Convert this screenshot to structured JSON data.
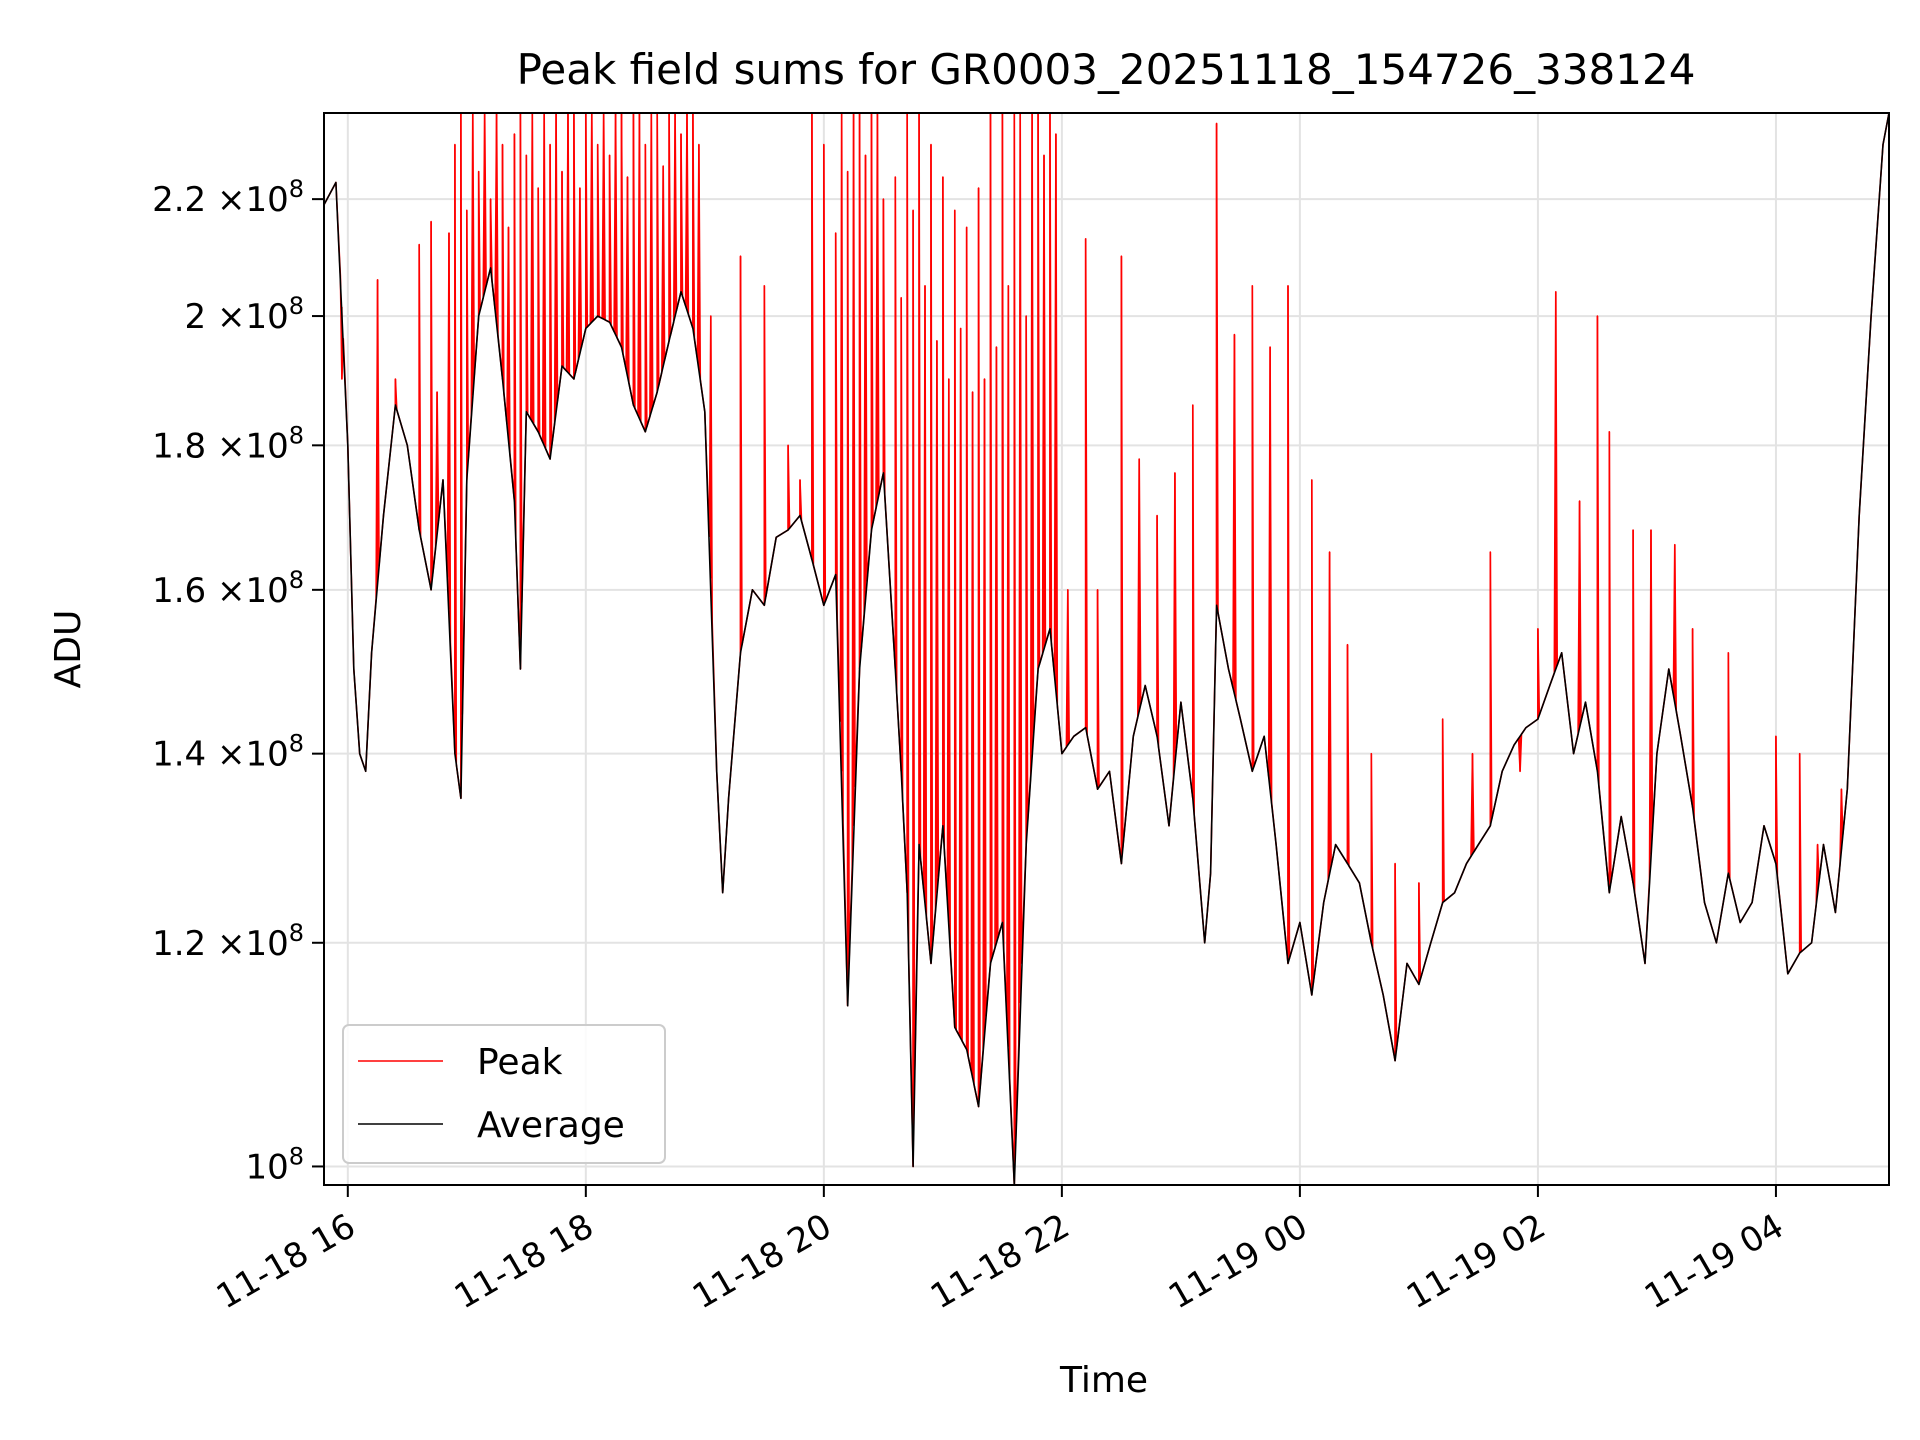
{
  "chart_data": {
    "type": "line",
    "title": "Peak field sums for GR0003_20251118_154726_338124",
    "xlabel": "Time",
    "ylabel": "ADU",
    "y_scale": "log",
    "ylim": [
      98500000,
      236000000
    ],
    "xlim_hours": [
      15.8,
      28.95
    ],
    "grid": true,
    "legend_position": "lower-left",
    "x_ticks": [
      {
        "hour": 16,
        "label": "11-18 16"
      },
      {
        "hour": 18,
        "label": "11-18 18"
      },
      {
        "hour": 20,
        "label": "11-18 20"
      },
      {
        "hour": 22,
        "label": "11-18 22"
      },
      {
        "hour": 24,
        "label": "11-19 00"
      },
      {
        "hour": 26,
        "label": "11-19 02"
      },
      {
        "hour": 28,
        "label": "11-19 04"
      }
    ],
    "y_ticks": [
      {
        "value": 100000000,
        "mantissa": "10",
        "label_mult": "",
        "exp": "8"
      },
      {
        "value": 120000000,
        "mantissa": "1.2",
        "label_mult": "×10",
        "exp": "8"
      },
      {
        "value": 140000000,
        "mantissa": "1.4",
        "label_mult": "×10",
        "exp": "8"
      },
      {
        "value": 160000000,
        "mantissa": "1.6",
        "label_mult": "×10",
        "exp": "8"
      },
      {
        "value": 180000000,
        "mantissa": "1.8",
        "label_mult": "×10",
        "exp": "8"
      },
      {
        "value": 200000000,
        "mantissa": "2",
        "label_mult": "×10",
        "exp": "8"
      },
      {
        "value": 220000000,
        "mantissa": "2.2",
        "label_mult": "×10",
        "exp": "8"
      }
    ],
    "series": [
      {
        "name": "Average",
        "color": "#000000",
        "x_hours": [
          15.8,
          15.9,
          16.0,
          16.05,
          16.1,
          16.15,
          16.2,
          16.3,
          16.4,
          16.5,
          16.6,
          16.7,
          16.8,
          16.9,
          16.95,
          17.0,
          17.1,
          17.2,
          17.3,
          17.4,
          17.45,
          17.5,
          17.6,
          17.7,
          17.8,
          17.9,
          18.0,
          18.1,
          18.2,
          18.3,
          18.4,
          18.5,
          18.6,
          18.7,
          18.8,
          18.9,
          19.0,
          19.1,
          19.15,
          19.2,
          19.3,
          19.4,
          19.5,
          19.6,
          19.7,
          19.8,
          19.9,
          20.0,
          20.1,
          20.2,
          20.3,
          20.4,
          20.5,
          20.6,
          20.65,
          20.7,
          20.75,
          20.8,
          20.9,
          21.0,
          21.1,
          21.2,
          21.3,
          21.4,
          21.5,
          21.6,
          21.7,
          21.8,
          21.9,
          22.0,
          22.1,
          22.2,
          22.3,
          22.4,
          22.5,
          22.6,
          22.7,
          22.8,
          22.9,
          23.0,
          23.1,
          23.2,
          23.25,
          23.3,
          23.4,
          23.5,
          23.6,
          23.7,
          23.8,
          23.9,
          24.0,
          24.1,
          24.2,
          24.3,
          24.4,
          24.5,
          24.6,
          24.7,
          24.8,
          24.9,
          25.0,
          25.1,
          25.2,
          25.3,
          25.4,
          25.5,
          25.6,
          25.7,
          25.8,
          25.9,
          26.0,
          26.1,
          26.2,
          26.3,
          26.4,
          26.5,
          26.6,
          26.7,
          26.8,
          26.9,
          27.0,
          27.1,
          27.2,
          27.3,
          27.4,
          27.5,
          27.6,
          27.7,
          27.8,
          27.9,
          28.0,
          28.1,
          28.2,
          28.3,
          28.4,
          28.5,
          28.6,
          28.7,
          28.8,
          28.9,
          28.95
        ],
        "values": [
          219000000,
          223000000,
          180000000,
          150000000,
          140000000,
          138000000,
          152000000,
          170000000,
          186000000,
          180000000,
          168000000,
          160000000,
          175000000,
          140000000,
          135000000,
          175000000,
          200000000,
          208000000,
          190000000,
          172000000,
          150000000,
          185000000,
          182000000,
          178000000,
          192000000,
          190000000,
          198000000,
          200000000,
          199000000,
          195000000,
          186000000,
          182000000,
          188000000,
          196000000,
          204000000,
          198000000,
          185000000,
          138000000,
          125000000,
          135000000,
          152000000,
          160000000,
          158000000,
          167000000,
          168000000,
          170000000,
          164000000,
          158000000,
          162000000,
          114000000,
          150000000,
          168000000,
          176000000,
          150000000,
          138000000,
          125000000,
          100000000,
          130000000,
          118000000,
          132000000,
          112000000,
          110000000,
          105000000,
          118000000,
          122000000,
          98500000,
          130000000,
          150000000,
          155000000,
          140000000,
          142000000,
          143000000,
          136000000,
          138000000,
          128000000,
          142000000,
          148000000,
          142000000,
          132000000,
          146000000,
          135000000,
          120000000,
          127000000,
          158000000,
          150000000,
          144000000,
          138000000,
          142000000,
          130000000,
          118000000,
          122000000,
          115000000,
          124000000,
          130000000,
          128000000,
          126000000,
          120000000,
          115000000,
          109000000,
          118000000,
          116000000,
          120000000,
          124000000,
          125000000,
          128000000,
          130000000,
          132000000,
          138000000,
          141000000,
          143000000,
          144000000,
          148000000,
          152000000,
          140000000,
          146000000,
          138000000,
          125000000,
          133000000,
          126000000,
          118000000,
          140000000,
          150000000,
          142000000,
          134000000,
          124000000,
          120000000,
          127000000,
          122000000,
          124000000,
          132000000,
          128000000,
          117000000,
          119000000,
          120000000,
          130000000,
          123000000,
          136000000,
          170000000,
          200000000,
          230000000,
          236000000
        ]
      },
      {
        "name": "Peak",
        "color": "#ff0000",
        "x_hours": [
          15.95,
          16.25,
          16.4,
          16.6,
          16.7,
          16.75,
          16.85,
          16.9,
          16.95,
          17.0,
          17.05,
          17.1,
          17.15,
          17.2,
          17.25,
          17.3,
          17.35,
          17.4,
          17.45,
          17.5,
          17.55,
          17.6,
          17.65,
          17.7,
          17.75,
          17.8,
          17.85,
          17.9,
          17.95,
          18.0,
          18.05,
          18.1,
          18.15,
          18.2,
          18.25,
          18.3,
          18.35,
          18.4,
          18.45,
          18.5,
          18.55,
          18.6,
          18.65,
          18.7,
          18.75,
          18.8,
          18.85,
          18.9,
          18.95,
          19.05,
          19.3,
          19.5,
          19.7,
          19.8,
          19.9,
          20.0,
          20.1,
          20.15,
          20.2,
          20.25,
          20.3,
          20.35,
          20.4,
          20.45,
          20.5,
          20.6,
          20.65,
          20.7,
          20.75,
          20.8,
          20.85,
          20.9,
          20.95,
          21.0,
          21.05,
          21.1,
          21.15,
          21.2,
          21.25,
          21.3,
          21.35,
          21.4,
          21.45,
          21.5,
          21.55,
          21.6,
          21.65,
          21.7,
          21.75,
          21.8,
          21.85,
          21.9,
          21.95,
          22.05,
          22.2,
          22.3,
          22.5,
          22.65,
          22.8,
          22.95,
          23.1,
          23.3,
          23.45,
          23.6,
          23.75,
          23.9,
          24.1,
          24.25,
          24.4,
          24.6,
          24.8,
          25.0,
          25.2,
          25.45,
          25.6,
          25.85,
          26.0,
          26.15,
          26.35,
          26.5,
          26.6,
          26.8,
          26.95,
          27.15,
          27.3,
          27.6,
          28.0,
          28.2,
          28.35,
          28.55
        ],
        "values": [
          190000000,
          206000000,
          190000000,
          212000000,
          216000000,
          188000000,
          214000000,
          230000000,
          236000000,
          218000000,
          236000000,
          225000000,
          236000000,
          220000000,
          236000000,
          230000000,
          215000000,
          232000000,
          236000000,
          228000000,
          236000000,
          222000000,
          236000000,
          230000000,
          236000000,
          225000000,
          236000000,
          236000000,
          222000000,
          236000000,
          236000000,
          230000000,
          236000000,
          228000000,
          236000000,
          236000000,
          224000000,
          236000000,
          236000000,
          230000000,
          236000000,
          236000000,
          226000000,
          236000000,
          236000000,
          232000000,
          236000000,
          236000000,
          230000000,
          200000000,
          210000000,
          205000000,
          180000000,
          175000000,
          236000000,
          230000000,
          214000000,
          236000000,
          225000000,
          236000000,
          236000000,
          228000000,
          236000000,
          236000000,
          220000000,
          224000000,
          203000000,
          236000000,
          218000000,
          236000000,
          205000000,
          230000000,
          196000000,
          224000000,
          190000000,
          218000000,
          198000000,
          215000000,
          188000000,
          222000000,
          190000000,
          236000000,
          195000000,
          236000000,
          205000000,
          236000000,
          236000000,
          200000000,
          236000000,
          236000000,
          228000000,
          236000000,
          232000000,
          160000000,
          213000000,
          160000000,
          210000000,
          178000000,
          170000000,
          176000000,
          186000000,
          234000000,
          197000000,
          205000000,
          195000000,
          205000000,
          175000000,
          165000000,
          153000000,
          140000000,
          128000000,
          126000000,
          144000000,
          140000000,
          165000000,
          138000000,
          155000000,
          204000000,
          172000000,
          200000000,
          182000000,
          168000000,
          168000000,
          166000000,
          155000000,
          152000000,
          142000000,
          140000000,
          130000000,
          136000000
        ]
      }
    ]
  }
}
